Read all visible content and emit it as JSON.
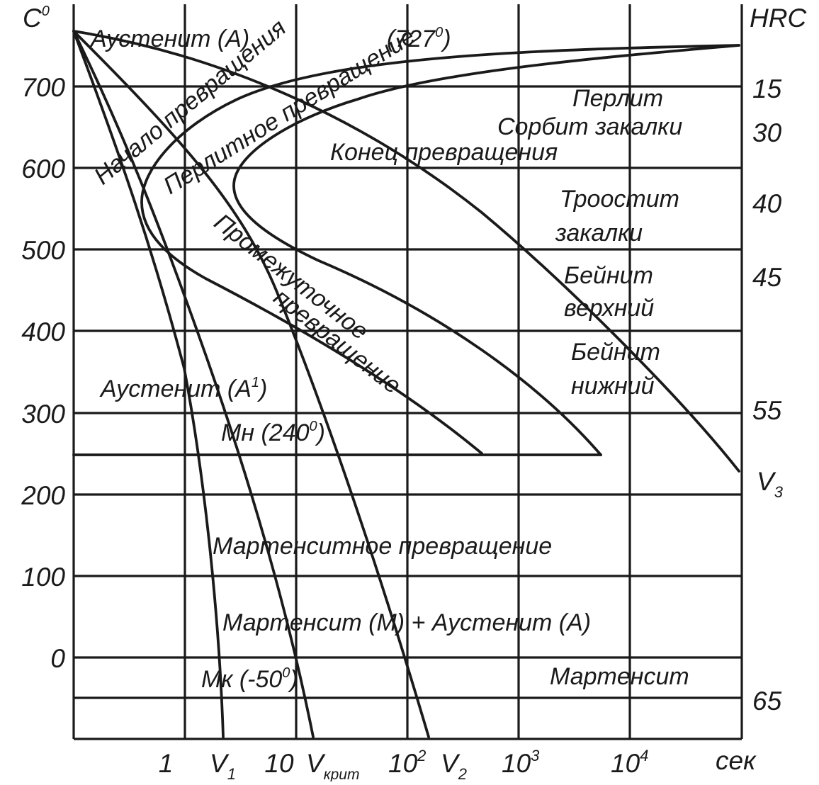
{
  "axes": {
    "y_title": "C",
    "y_title_sup": "0",
    "y_ticks": [
      "700",
      "600",
      "500",
      "400",
      "300",
      "200",
      "100",
      "0"
    ],
    "right_title": "HRC",
    "right_ticks": [
      "15",
      "30",
      "40",
      "45",
      "55",
      "65"
    ],
    "x_ticks": [
      {
        "base": "1",
        "sup": ""
      },
      {
        "base": "10",
        "sup": ""
      },
      {
        "base": "10",
        "sup": "2"
      },
      {
        "base": "10",
        "sup": "3"
      },
      {
        "base": "10",
        "sup": "4"
      }
    ],
    "x_unit": "сек"
  },
  "velocities": {
    "v1": {
      "main": "V",
      "sub": "1"
    },
    "vcrit": {
      "main": "V",
      "sub": "крит"
    },
    "v2": {
      "main": "V",
      "sub": "2"
    },
    "v3": {
      "main": "V",
      "sub": "3"
    }
  },
  "labels": {
    "austenite_top": "Аустенит (А)",
    "temp_727": {
      "main": "(727",
      "sup": "0",
      "tail": ")"
    },
    "start": "Начало превращения",
    "pearlitic": "Перлитное превращение",
    "end": "Конец превращения",
    "pearlite": "Перлит",
    "sorbite": "Сорбит закалки",
    "troostite_1": "Троостит",
    "troostite_2": "закалки",
    "bainite_upper_1": "Бейнит",
    "bainite_upper_2": "верхний",
    "bainite_lower_1": "Бейнит",
    "bainite_lower_2": "нижний",
    "intermediate_1": "Промежуточное",
    "intermediate_2": "превращение",
    "austenite_a1": {
      "main": "Аустенит (А",
      "sup": "1",
      "tail": ")"
    },
    "mn": {
      "main": "Мн (240",
      "sup": "0",
      "tail": ")"
    },
    "martensitic": "Мартенситное превращение",
    "mart_aust": "Мартенсит (М)  + Аустенит (А)",
    "martensite": "Мартенсит",
    "mk": {
      "main": "Мк (-50",
      "sup": "0",
      "tail": ")"
    }
  }
}
